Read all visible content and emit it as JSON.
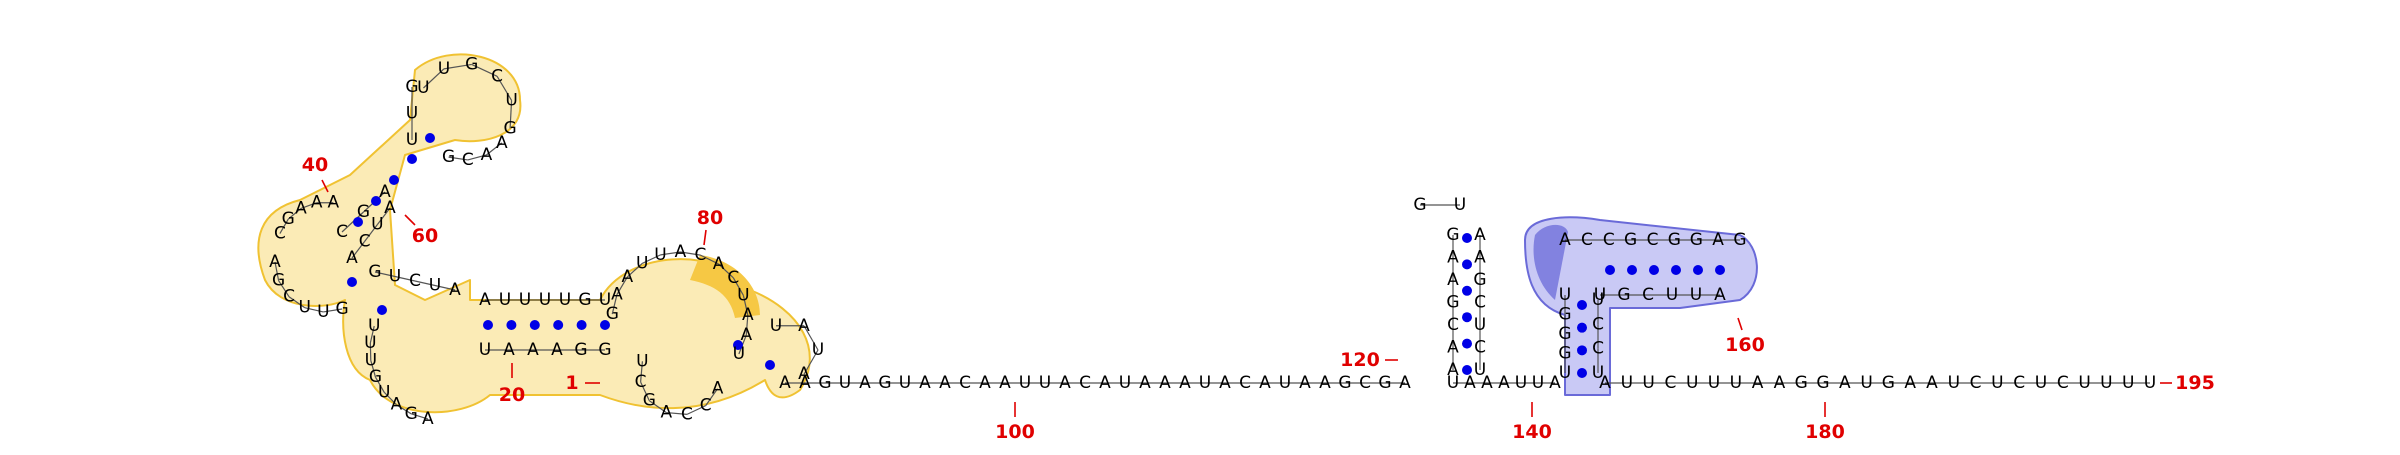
{
  "diagram_type": "rna-secondary-structure",
  "sequence_length": 195,
  "region_colors": {
    "region1": "#f2c233",
    "region2": "#6a6ad8"
  },
  "nucleotides": {
    "first_stem_5p": "AUUUUGU",
    "first_stem_3p": "UUGAUUUAAAGU",
    "dup": "ACUGCCAGUUCG",
    "loop_80": "GAAUUACACUAAU",
    "tail_a": "AAGUAGUAACAAUUACAUAAAUACAUAAGCGA",
    "hp120_left": "GAAGCAA",
    "hp120_loop": "GU",
    "hp120_right": "AAGCUCU",
    "linker": "UAAAUUA",
    "hp2_left": "UGGGU",
    "hp2_arm_top": "ACCGCGGAG",
    "hp2_loop": "AG",
    "hp2_arm_bottom": "AUUCGU",
    "hp2_right": "UCCU",
    "tail_b": "AUUCUUUAAGGAUGAAUCUCUCUUUU"
  },
  "numbers": {
    "n1": "1",
    "n20": "20",
    "n40": "40",
    "n60": "60",
    "n80": "80",
    "n100": "100",
    "n120": "120",
    "n140": "140",
    "n160": "160",
    "n180": "180",
    "n195": "195"
  }
}
